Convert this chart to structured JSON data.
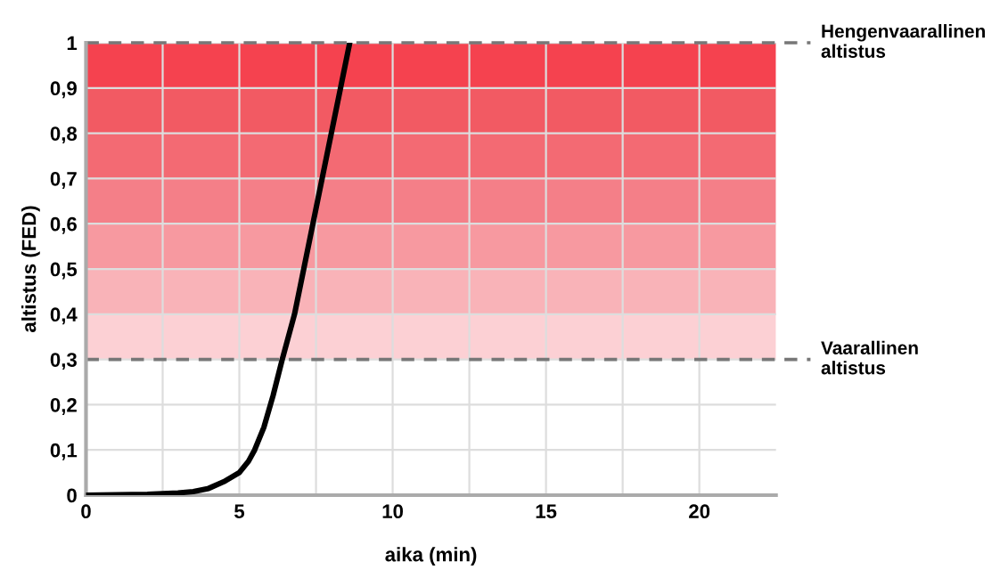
{
  "chart_data": {
    "type": "line",
    "xlabel": "aika (min)",
    "ylabel": "altistus (FED)",
    "x": [
      0,
      1,
      2,
      3,
      3.5,
      4,
      4.5,
      5,
      5.3,
      5.5,
      5.8,
      6.1,
      6.4,
      6.8,
      7.1,
      7.4,
      7.7,
      8.0,
      8.3,
      8.6
    ],
    "series": [
      {
        "color": "#000000",
        "values": [
          0,
          0.001,
          0.002,
          0.005,
          0.008,
          0.015,
          0.03,
          0.05,
          0.075,
          0.1,
          0.15,
          0.22,
          0.3,
          0.4,
          0.5,
          0.6,
          0.7,
          0.8,
          0.9,
          1.0
        ]
      }
    ],
    "marker": "none",
    "line_style": "solid",
    "grid": true,
    "legend": false,
    "xlim": [
      0,
      22.5
    ],
    "xticks": [
      0,
      {
        "value": 2.5,
        "label": null
      },
      5,
      {
        "value": 7.5,
        "label": null
      },
      10,
      {
        "value": 12.5,
        "label": null
      },
      15,
      {
        "value": 17.5,
        "label": null
      },
      20
    ],
    "ylim": [
      0,
      1
    ],
    "yticks": [
      0,
      {
        "value": 0.1,
        "label": "0,1"
      },
      {
        "value": 0.2,
        "label": "0,2"
      },
      {
        "value": 0.3,
        "label": "0,3"
      },
      {
        "value": 0.4,
        "label": "0,4"
      },
      {
        "value": 0.5,
        "label": "0,5"
      },
      {
        "value": 0.6,
        "label": "0,6"
      },
      {
        "value": 0.7,
        "label": "0,7"
      },
      {
        "value": 0.8,
        "label": "0,8"
      },
      {
        "value": 0.9,
        "label": "0,9"
      },
      1
    ],
    "bands": [
      {
        "axis": "y",
        "from": 0.3,
        "to": 0.4,
        "color": "#fcd0d4"
      },
      {
        "axis": "y",
        "from": 0.4,
        "to": 0.5,
        "color": "#f9b3b8"
      },
      {
        "axis": "y",
        "from": 0.5,
        "to": 0.6,
        "color": "#f799a0"
      },
      {
        "axis": "y",
        "from": 0.6,
        "to": 0.7,
        "color": "#f47f88"
      },
      {
        "axis": "y",
        "from": 0.7,
        "to": 0.8,
        "color": "#f36a73"
      },
      {
        "axis": "y",
        "from": 0.8,
        "to": 0.9,
        "color": "#f25a63"
      },
      {
        "axis": "y",
        "from": 0.9,
        "to": 1.0,
        "color": "#f5424f"
      }
    ],
    "ref_lines": [
      {
        "axis": "y",
        "value": 0.3,
        "label": "Vaarallinen\naltistus",
        "color": "#777777",
        "line_style": "dashed"
      },
      {
        "axis": "y",
        "value": 1,
        "label": "Hengenvaarallinen\naltistus",
        "color": "#777777",
        "line_style": "dashed"
      }
    ]
  }
}
